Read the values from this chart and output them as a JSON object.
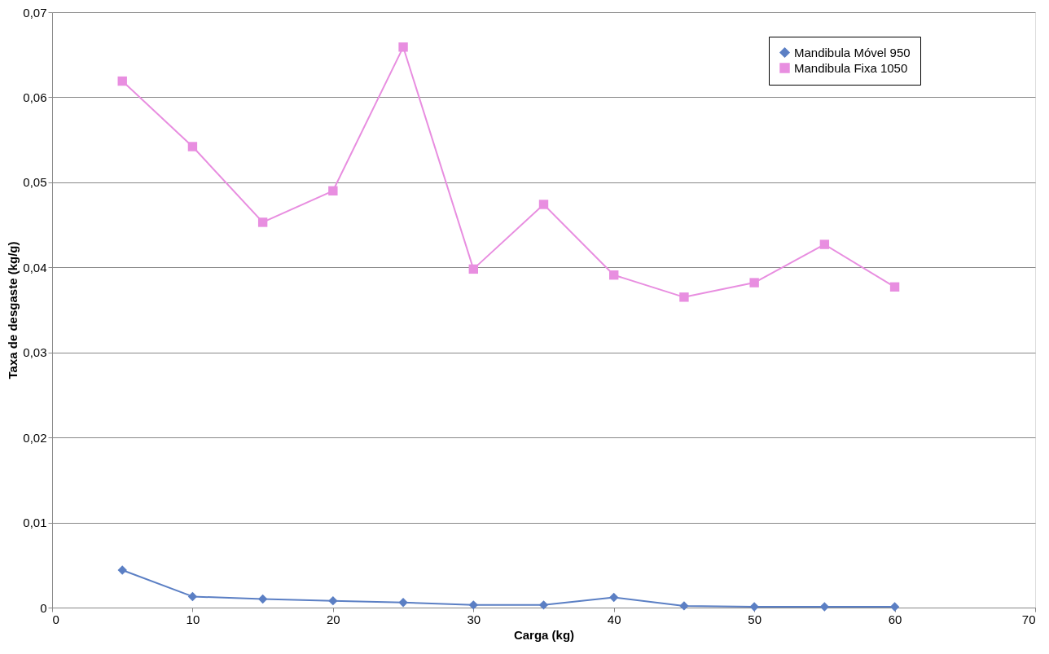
{
  "chart_data": {
    "type": "line",
    "xlabel": "Carga (kg)",
    "ylabel": "Taxa de desgaste (kg/g)",
    "x": [
      5,
      10,
      15,
      20,
      25,
      30,
      35,
      40,
      45,
      50,
      55,
      60
    ],
    "series": [
      {
        "name": "Mandibula Móvel 950",
        "color": "#5b7fc4",
        "marker": "diamond",
        "values": [
          0.0044,
          0.0013,
          0.001,
          0.0008,
          0.0006,
          0.0003,
          0.0003,
          0.0012,
          0.0002,
          0.0001,
          0.0001,
          0.0001
        ]
      },
      {
        "name": "Mandibula Fixa 1050",
        "color": "#e88ee0",
        "marker": "square",
        "values": [
          0.0619,
          0.0542,
          0.0453,
          0.049,
          0.0659,
          0.0398,
          0.0474,
          0.0391,
          0.0365,
          0.0382,
          0.0427,
          0.0377
        ]
      }
    ],
    "xlim": [
      0,
      70
    ],
    "xticks": [
      0,
      10,
      20,
      30,
      40,
      50,
      60,
      70
    ],
    "ylim": [
      0,
      0.07
    ],
    "yticks": [
      {
        "value": 0,
        "label": "0"
      },
      {
        "value": 0.01,
        "label": "0,01"
      },
      {
        "value": 0.02,
        "label": "0,02"
      },
      {
        "value": 0.03,
        "label": "0,03"
      },
      {
        "value": 0.04,
        "label": "0,04"
      },
      {
        "value": 0.05,
        "label": "0,05"
      },
      {
        "value": 0.06,
        "label": "0,06"
      },
      {
        "value": 0.07,
        "label": "0,07"
      }
    ],
    "grid": "y",
    "legend": "top right",
    "line_style": "solid"
  }
}
